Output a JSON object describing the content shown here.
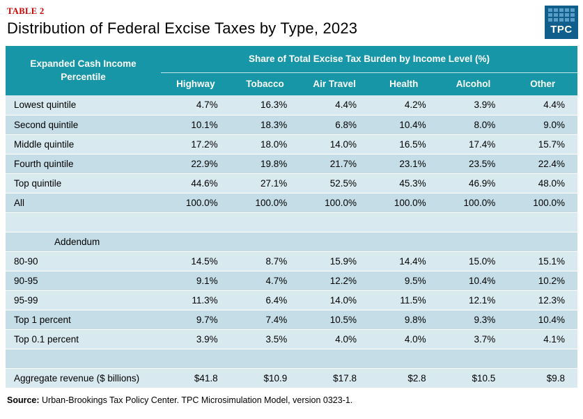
{
  "page": {
    "table_label": "TABLE 2",
    "title": "Distribution of Federal Excise Taxes by Type, 2023",
    "source_label": "Source:",
    "source_text": " Urban-Brookings Tax Policy Center. TPC Microsimulation Model, version 0323-1."
  },
  "logo": {
    "text": "TPC"
  },
  "colors": {
    "header_teal": "#1696a7",
    "row_light": "#d8e9ef",
    "row_dark": "#c4dde6",
    "table_label_red": "#cc0000",
    "logo_blue": "#0f5e8c",
    "logo_square_blue": "#5a9dc7"
  },
  "chart_data": {
    "type": "table",
    "title": "Distribution of Federal Excise Taxes by Type, 2023",
    "header": {
      "row_label": "Expanded Cash Income Percentile",
      "span_label": "Share of Total Excise Tax Burden by Income Level (%)",
      "columns": [
        "Highway",
        "Tobacco",
        "Air Travel",
        "Health",
        "Alcohol",
        "Other"
      ]
    },
    "rows": [
      {
        "type": "data",
        "label": "Lowest quintile",
        "values": [
          "4.7%",
          "16.3%",
          "4.4%",
          "4.2%",
          "3.9%",
          "4.4%"
        ]
      },
      {
        "type": "data",
        "label": "Second quintile",
        "values": [
          "10.1%",
          "18.3%",
          "6.8%",
          "10.4%",
          "8.0%",
          "9.0%"
        ]
      },
      {
        "type": "data",
        "label": "Middle quintile",
        "values": [
          "17.2%",
          "18.0%",
          "14.0%",
          "16.5%",
          "17.4%",
          "15.7%"
        ]
      },
      {
        "type": "data",
        "label": "Fourth quintile",
        "values": [
          "22.9%",
          "19.8%",
          "21.7%",
          "23.1%",
          "23.5%",
          "22.4%"
        ]
      },
      {
        "type": "data",
        "label": "Top quintile",
        "values": [
          "44.6%",
          "27.1%",
          "52.5%",
          "45.3%",
          "46.9%",
          "48.0%"
        ]
      },
      {
        "type": "data",
        "label": "All",
        "values": [
          "100.0%",
          "100.0%",
          "100.0%",
          "100.0%",
          "100.0%",
          "100.0%"
        ]
      },
      {
        "type": "spacer"
      },
      {
        "type": "section",
        "label": "Addendum"
      },
      {
        "type": "data",
        "label": "80-90",
        "values": [
          "14.5%",
          "8.7%",
          "15.9%",
          "14.4%",
          "15.0%",
          "15.1%"
        ]
      },
      {
        "type": "data",
        "label": "90-95",
        "values": [
          "9.1%",
          "4.7%",
          "12.2%",
          "9.5%",
          "10.4%",
          "10.2%"
        ]
      },
      {
        "type": "data",
        "label": "95-99",
        "values": [
          "11.3%",
          "6.4%",
          "14.0%",
          "11.5%",
          "12.1%",
          "12.3%"
        ]
      },
      {
        "type": "data",
        "label": "Top 1 percent",
        "values": [
          "9.7%",
          "7.4%",
          "10.5%",
          "9.8%",
          "9.3%",
          "10.4%"
        ]
      },
      {
        "type": "data",
        "label": "Top 0.1 percent",
        "values": [
          "3.9%",
          "3.5%",
          "4.0%",
          "4.0%",
          "3.7%",
          "4.1%"
        ]
      },
      {
        "type": "spacer"
      },
      {
        "type": "data",
        "label": "Aggregate revenue ($ billions)",
        "values": [
          "$41.8",
          "$10.9",
          "$17.8",
          "$2.8",
          "$10.5",
          "$9.8"
        ]
      }
    ]
  }
}
